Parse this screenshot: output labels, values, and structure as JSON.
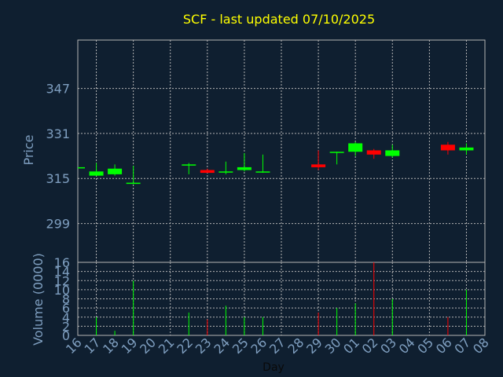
{
  "chart_data": {
    "type": "candlestick",
    "title": "SCF - last updated 07/10/2025",
    "xlabel": "Day",
    "price_panel": {
      "ylabel": "Price",
      "yticks": [
        299,
        315,
        331,
        347
      ],
      "ylim": [
        285.2,
        364.2
      ],
      "grid": true
    },
    "volume_panel": {
      "ylabel": "Volume (0000)",
      "yticks": [
        0,
        2,
        4,
        6,
        8,
        10,
        12,
        14,
        16
      ],
      "ylim": [
        0,
        16
      ],
      "grid": true
    },
    "x_ticks": [
      "16",
      "17",
      "18",
      "19",
      "20",
      "21",
      "22",
      "23",
      "24",
      "25",
      "26",
      "27",
      "28",
      "29",
      "30",
      "01",
      "02",
      "03",
      "04",
      "05",
      "06",
      "07",
      "08"
    ],
    "candles": [
      {
        "day": "16",
        "open": 319.0,
        "close": 319.0,
        "high": 319.0,
        "low": 319.0,
        "volume": 0,
        "dir": "up"
      },
      {
        "day": "17",
        "open": 316.0,
        "close": 317.5,
        "high": 320.5,
        "low": 316.0,
        "volume": 4,
        "dir": "up"
      },
      {
        "day": "18",
        "open": 316.5,
        "close": 318.5,
        "high": 320.0,
        "low": 316.0,
        "volume": 1,
        "dir": "up"
      },
      {
        "day": "19",
        "open": 313.5,
        "close": 313.5,
        "high": 319.5,
        "low": 313.0,
        "volume": 12,
        "dir": "up"
      },
      {
        "day": "22",
        "open": 320.0,
        "close": 320.0,
        "high": 320.5,
        "low": 316.5,
        "volume": 5,
        "dir": "up"
      },
      {
        "day": "23",
        "open": 318.0,
        "close": 317.0,
        "high": 318.5,
        "low": 317.0,
        "volume": 3.5,
        "dir": "down"
      },
      {
        "day": "24",
        "open": 317.5,
        "close": 317.5,
        "high": 321.0,
        "low": 316.5,
        "volume": 6.5,
        "dir": "up"
      },
      {
        "day": "25",
        "open": 318.0,
        "close": 319.0,
        "high": 324.0,
        "low": 317.5,
        "volume": 4,
        "dir": "up"
      },
      {
        "day": "26",
        "open": 317.5,
        "close": 317.5,
        "high": 323.5,
        "low": 317.0,
        "volume": 4,
        "dir": "up"
      },
      {
        "day": "29",
        "open": 320.0,
        "close": 319.0,
        "high": 325.0,
        "low": 318.0,
        "volume": 5,
        "dir": "down"
      },
      {
        "day": "30",
        "open": 324.5,
        "close": 324.5,
        "high": 324.5,
        "low": 320.0,
        "volume": 6,
        "dir": "up"
      },
      {
        "day": "01",
        "open": 324.5,
        "close": 327.5,
        "high": 328.0,
        "low": 323.0,
        "volume": 7,
        "dir": "up"
      },
      {
        "day": "02",
        "open": 325.0,
        "close": 323.5,
        "high": 325.5,
        "low": 322.0,
        "volume": 16,
        "dir": "down"
      },
      {
        "day": "03",
        "open": 323.0,
        "close": 325.0,
        "high": 327.0,
        "low": 322.5,
        "volume": 8,
        "dir": "up"
      },
      {
        "day": "06",
        "open": 327.0,
        "close": 325.0,
        "high": 328.0,
        "low": 323.5,
        "volume": 4,
        "dir": "down"
      },
      {
        "day": "07",
        "open": 325.0,
        "close": 326.0,
        "high": 327.5,
        "low": 323.5,
        "volume": 10,
        "dir": "up"
      }
    ],
    "colors": {
      "background": "#0f1f30",
      "title": "#ffff00",
      "axis_text": "#7f9fc0",
      "grid": "#b4b4b4",
      "up": "#00ff00",
      "down": "#ff0000"
    }
  }
}
